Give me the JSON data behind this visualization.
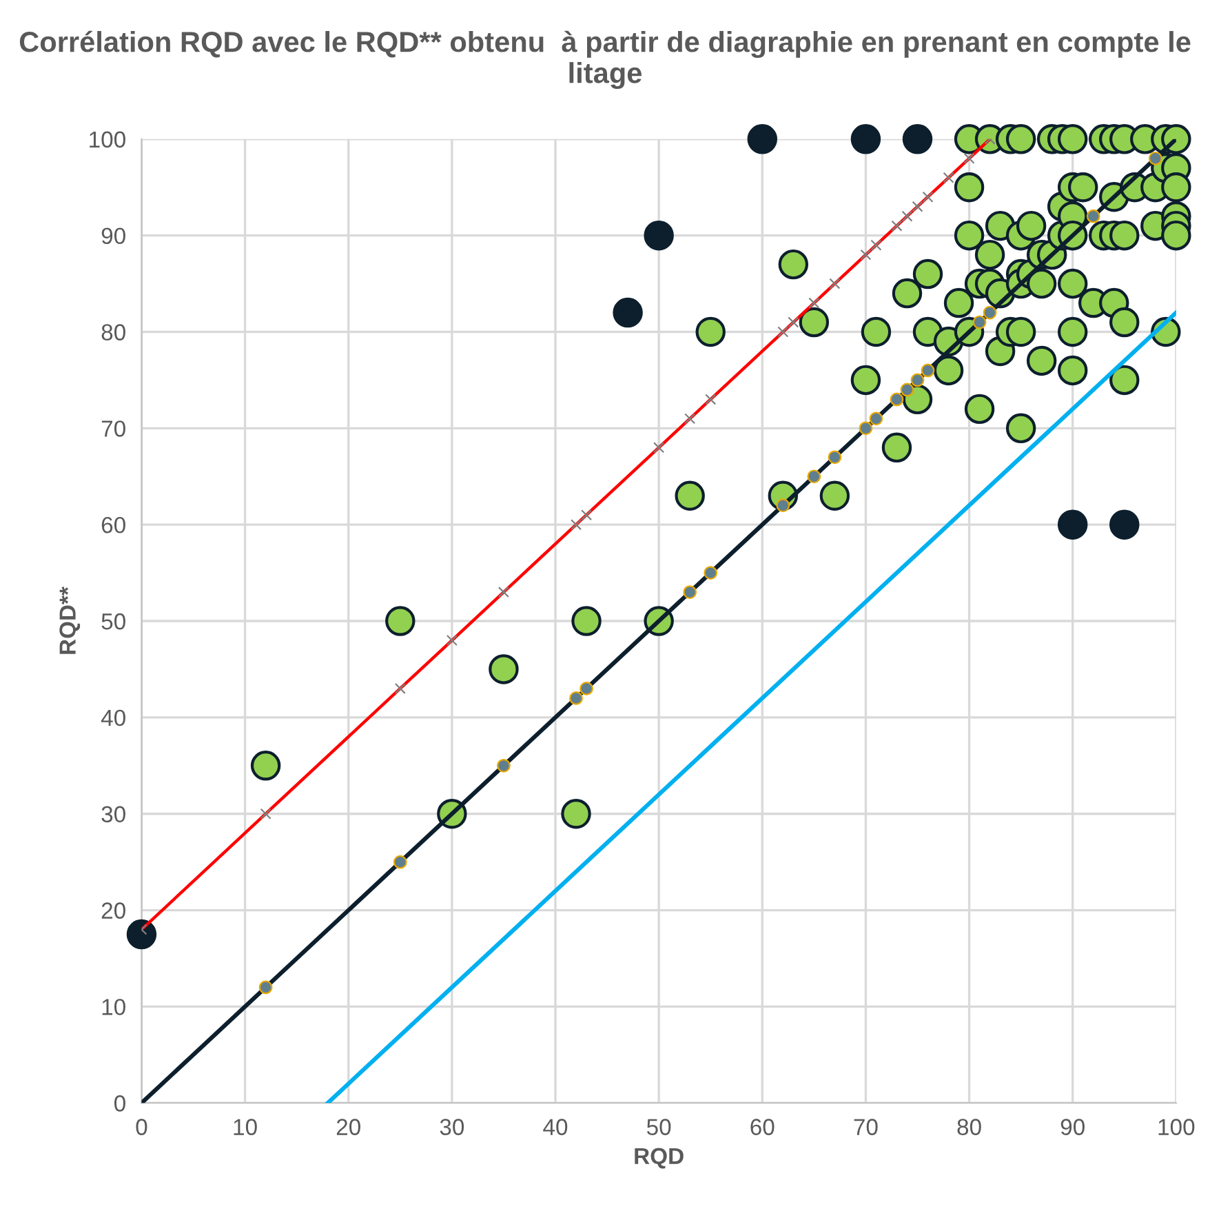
{
  "chart_data": {
    "type": "scatter",
    "title": "Corrélation RQD avec le RQD** obtenu  à partir de diagraphie en prenant en compte le litage",
    "xlabel": "RQD",
    "ylabel": "RQD**",
    "xlim": [
      0,
      100
    ],
    "ylim": [
      0,
      100
    ],
    "xticks": [
      0,
      10,
      20,
      30,
      40,
      50,
      60,
      70,
      80,
      90,
      100
    ],
    "yticks": [
      0,
      10,
      20,
      30,
      40,
      50,
      60,
      70,
      80,
      90,
      100
    ],
    "grid": true,
    "legend": false,
    "series": [
      {
        "type": "line",
        "color": "#ff0000",
        "marker": "cross",
        "x": [
          0,
          12,
          25,
          30,
          35,
          42,
          43,
          50,
          53,
          55,
          62,
          63,
          65,
          67,
          70,
          71,
          73,
          74,
          75,
          76,
          78,
          80,
          82
        ],
        "values": [
          18,
          30,
          43,
          48,
          53,
          60,
          61,
          68,
          71,
          73,
          80,
          81,
          83,
          85,
          88,
          89,
          91,
          92,
          93,
          94,
          96,
          98,
          100
        ]
      },
      {
        "type": "line",
        "color": "#0d1f2d",
        "marker": "none",
        "x": [
          0,
          100
        ],
        "values": [
          0,
          100
        ]
      },
      {
        "type": "line",
        "color": "#00b0f0",
        "marker": "none",
        "x": [
          18,
          100
        ],
        "values": [
          0,
          82
        ]
      },
      {
        "color": "#5f7f8f",
        "marker": "circle",
        "x": [
          12,
          25,
          35,
          42,
          43,
          53,
          55,
          62,
          65,
          67,
          70,
          71,
          73,
          74,
          75,
          76,
          81,
          82,
          92,
          98
        ],
        "values": [
          12,
          25,
          35,
          42,
          43,
          53,
          55,
          62,
          65,
          67,
          70,
          71,
          73,
          74,
          75,
          76,
          81,
          82,
          92,
          98
        ]
      },
      {
        "color": "#92d050",
        "marker": "circle",
        "x": [
          12,
          25,
          35,
          42,
          43,
          30,
          50,
          53,
          55,
          62,
          63,
          65,
          67,
          70,
          71,
          73,
          74,
          75,
          76,
          76,
          78,
          78,
          79,
          80,
          80,
          80,
          80,
          81,
          81,
          82,
          82,
          82,
          83,
          83,
          83,
          84,
          84,
          85,
          85,
          85,
          85,
          85,
          85,
          86,
          86,
          87,
          87,
          87,
          88,
          88,
          89,
          89,
          89,
          90,
          90,
          90,
          90,
          90,
          90,
          90,
          91,
          92,
          93,
          93,
          94,
          94,
          94,
          94,
          95,
          95,
          95,
          95,
          96,
          97,
          98,
          98,
          99,
          99,
          99,
          100,
          100,
          100,
          100,
          100,
          100
        ],
        "values": [
          35,
          50,
          45,
          30,
          50,
          30,
          50,
          63,
          80,
          63,
          87,
          81,
          63,
          75,
          80,
          68,
          84,
          73,
          86,
          80,
          76,
          79,
          83,
          80,
          90,
          95,
          100,
          72,
          85,
          88,
          100,
          85,
          91,
          78,
          84,
          80,
          100,
          80,
          70,
          86,
          85,
          90,
          100,
          91,
          86,
          88,
          85,
          77,
          88,
          100,
          90,
          93,
          100,
          100,
          92,
          90,
          85,
          80,
          76,
          95,
          95,
          83,
          100,
          90,
          100,
          94,
          90,
          83,
          100,
          90,
          81,
          75,
          95,
          100,
          91,
          95,
          100,
          97,
          80,
          100,
          97,
          95,
          92,
          91,
          90
        ]
      },
      {
        "color": "#0d1f2d",
        "marker": "circle",
        "x": [
          0,
          47,
          50,
          60,
          70,
          75,
          90,
          95
        ],
        "values": [
          17.5,
          82,
          90,
          100,
          100,
          100,
          60,
          60
        ]
      }
    ]
  }
}
